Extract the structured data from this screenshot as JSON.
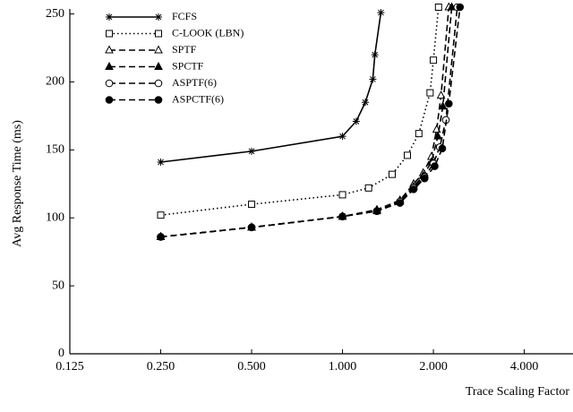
{
  "chart_data": {
    "type": "line",
    "x_scale": "log2",
    "xlabel": "Trace Scaling Factor",
    "ylabel": "Avg Response Time (ms)",
    "xlim": [
      0.125,
      5.8
    ],
    "ylim": [
      0,
      255
    ],
    "xticks": [
      0.125,
      {
        "value": 0.25,
        "label": "0.250"
      },
      {
        "value": 0.5,
        "label": "0.500"
      },
      {
        "value": 1,
        "label": "1.000"
      },
      {
        "value": 2,
        "label": "2.000"
      },
      {
        "value": 4,
        "label": "4.000"
      }
    ],
    "yticks": [
      0,
      50,
      100,
      150,
      200,
      250
    ],
    "legend": "upper-left",
    "series": [
      {
        "name": "FCFS",
        "color": "#000000",
        "marker": "star",
        "dash": "solid",
        "x": [
          0.25,
          0.5,
          1.0,
          1.11,
          1.19,
          1.26,
          1.28,
          1.34
        ],
        "values": [
          141,
          149,
          160,
          171,
          185,
          202,
          220,
          251
        ]
      },
      {
        "name": "C-LOOK (LBN)",
        "color": "#000000",
        "marker": "square-open",
        "dash": "dotted",
        "x": [
          0.25,
          0.5,
          1.0,
          1.22,
          1.46,
          1.64,
          1.79,
          1.95,
          2.0,
          2.08
        ],
        "values": [
          102,
          110,
          117,
          122,
          132,
          146,
          162,
          192,
          216,
          255
        ]
      },
      {
        "name": "SPTF",
        "color": "#000000",
        "marker": "triangle-open",
        "dash": "dashed",
        "x": [
          0.25,
          0.5,
          1.0,
          1.3,
          1.55,
          1.72,
          1.85,
          1.97,
          2.05,
          2.12,
          2.25
        ],
        "values": [
          86,
          93,
          101,
          106,
          113,
          125,
          133,
          145,
          165,
          190,
          255
        ]
      },
      {
        "name": "SPCTF",
        "color": "#000000",
        "marker": "triangle-filled",
        "dash": "dashed",
        "x": [
          0.25,
          0.5,
          1.0,
          1.3,
          1.55,
          1.72,
          1.85,
          1.97,
          2.07,
          2.15,
          2.3
        ],
        "values": [
          86,
          93,
          101,
          105,
          112,
          123,
          131,
          141,
          160,
          182,
          255
        ]
      },
      {
        "name": "ASPTF(6)",
        "color": "#000000",
        "marker": "circle-open",
        "dash": "dashed",
        "x": [
          0.25,
          0.5,
          1.0,
          1.3,
          1.55,
          1.72,
          1.87,
          2.0,
          2.1,
          2.2,
          2.4
        ],
        "values": [
          86,
          93,
          101,
          105,
          112,
          122,
          130,
          140,
          152,
          172,
          255
        ]
      },
      {
        "name": "ASPCTF(6)",
        "color": "#000000",
        "marker": "circle-filled",
        "dash": "dashed",
        "x": [
          0.25,
          0.5,
          1.0,
          1.3,
          1.55,
          1.72,
          1.87,
          2.02,
          2.14,
          2.25,
          2.45
        ],
        "values": [
          86,
          93,
          101,
          105,
          111,
          121,
          129,
          138,
          151,
          184,
          255
        ]
      }
    ]
  }
}
